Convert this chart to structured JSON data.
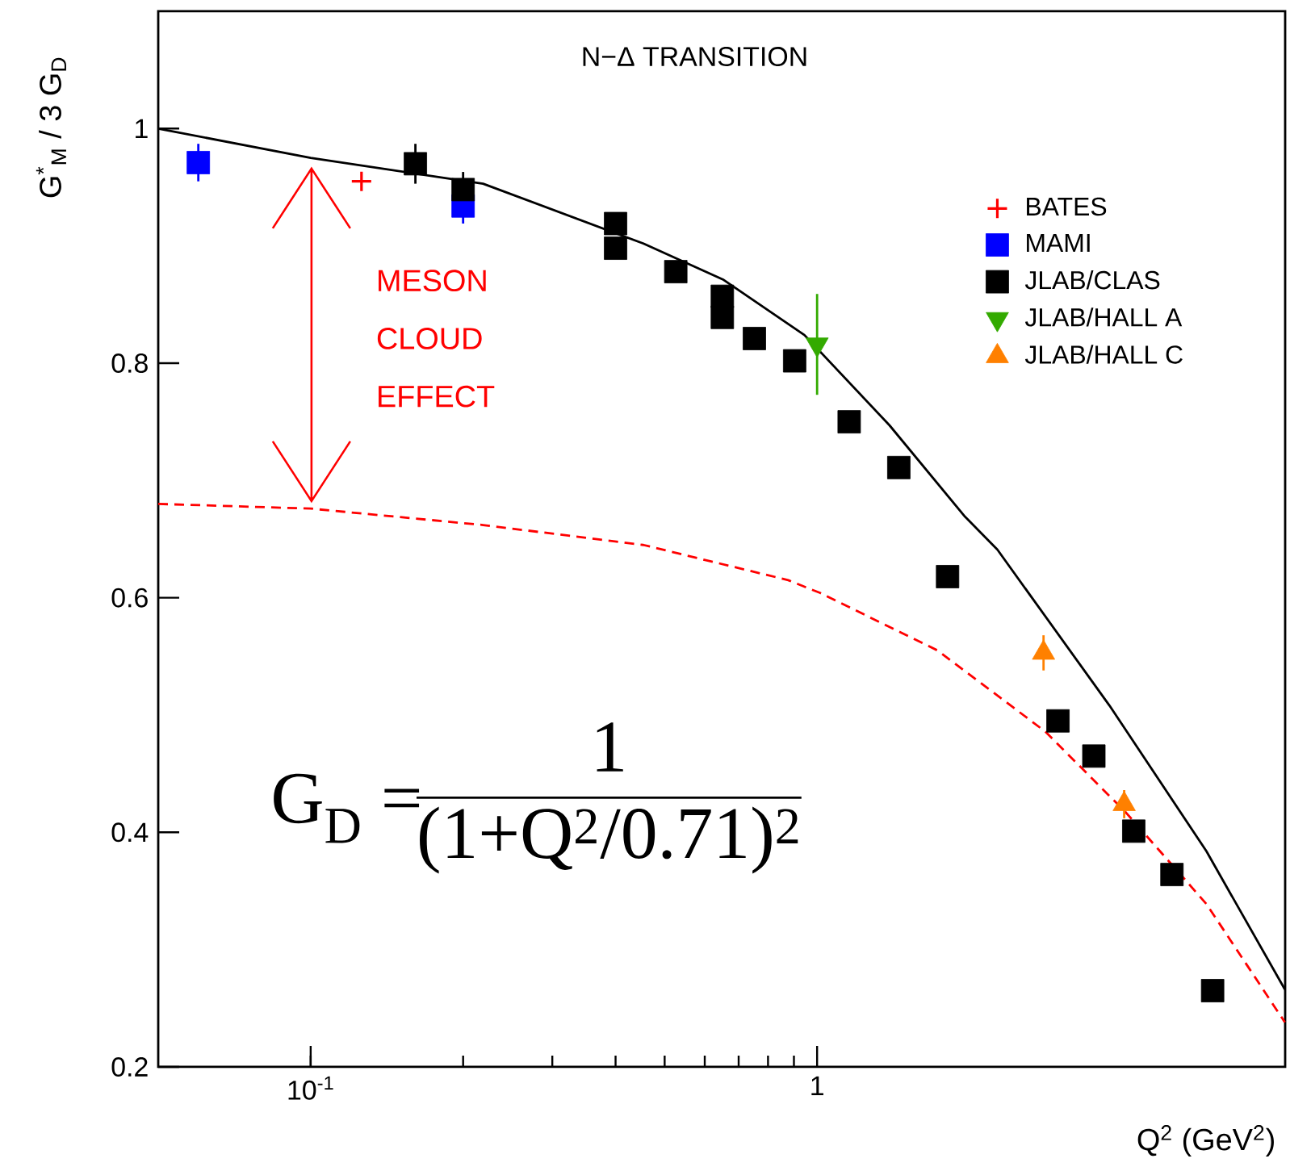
{
  "chart_data": {
    "type": "scatter",
    "title": "N−Δ TRANSITION",
    "xlabel": "Q$^{2}$ (GeV$^{2}$)",
    "ylabel": "G$^{*}$$_{M}$ / 3 G$_{D}$",
    "log": "x",
    "xlim": [
      0.05,
      8.4
    ],
    "ylim": [
      0.2,
      1.1
    ],
    "xticks": [
      {
        "value": 0.1,
        "label": "10$^{-1}$"
      },
      1
    ],
    "yticks": [
      0.2,
      0.4,
      0.6,
      0.8,
      1
    ],
    "grid": false,
    "legend": "top right",
    "series": [
      {
        "type": "line",
        "color": "#000000",
        "line_style": "solid",
        "marker": "none",
        "x": [
          0.05,
          0.1,
          0.219,
          0.454,
          0.654,
          0.944,
          1.39,
          1.96,
          2.27,
          3.78,
          5.87,
          8.39
        ],
        "values": [
          1.0,
          0.975,
          0.953,
          0.902,
          0.871,
          0.824,
          0.747,
          0.669,
          0.641,
          0.508,
          0.384,
          0.266
        ]
      },
      {
        "type": "line",
        "color": "#ff0000",
        "line_style": "dashed",
        "marker": "none",
        "x": [
          0.05,
          0.1,
          0.219,
          0.454,
          0.877,
          1.015,
          1.73,
          2.82,
          4.07,
          5.87,
          8.39
        ],
        "values": [
          0.68,
          0.676,
          0.662,
          0.645,
          0.615,
          0.604,
          0.555,
          0.486,
          0.417,
          0.339,
          0.238
        ]
      },
      {
        "name": "BATES",
        "color": "#ff0000",
        "marker": "cross",
        "x": [
          0.126
        ],
        "values": [
          0.955
        ]
      },
      {
        "name": "MAMI",
        "color": "#0000ff",
        "marker": "square",
        "x": [
          0.06,
          0.2
        ],
        "values": [
          0.971,
          0.934
        ],
        "errors": [
          0.016,
          0.015
        ]
      },
      {
        "name": "JLAB/CLAS",
        "color": "#000000",
        "marker": "square",
        "x": [
          0.161,
          0.2,
          0.4,
          0.4,
          0.526,
          0.65,
          0.65,
          0.752,
          0.903,
          1.157,
          1.45,
          1.81,
          2.99,
          3.52,
          4.22,
          5.02,
          6.04
        ],
        "values": [
          0.97,
          0.948,
          0.919,
          0.898,
          0.878,
          0.857,
          0.839,
          0.821,
          0.802,
          0.75,
          0.711,
          0.618,
          0.495,
          0.465,
          0.401,
          0.364,
          0.265
        ],
        "errors": [
          0.017,
          0.015,
          null,
          null,
          null,
          null,
          null,
          null,
          null,
          null,
          null,
          null,
          null,
          null,
          null,
          null,
          null
        ]
      },
      {
        "name": "JLAB/HALL A",
        "color": "#33aa00",
        "marker": "triangle_down",
        "x": [
          1.0
        ],
        "values": [
          0.816
        ],
        "errors": [
          0.043
        ]
      },
      {
        "name": "JLAB/HALL C",
        "color": "#ff8000",
        "marker": "triangle",
        "x": [
          2.8,
          4.04
        ],
        "values": [
          0.553,
          0.424
        ],
        "errors": [
          0.015,
          0.012
        ]
      }
    ],
    "annotations": [
      "MESON CLOUD EFFECT",
      "G$_{D}$ =",
      "1",
      "(1+Q$^{2}$/0.71)$^{2}$"
    ]
  }
}
